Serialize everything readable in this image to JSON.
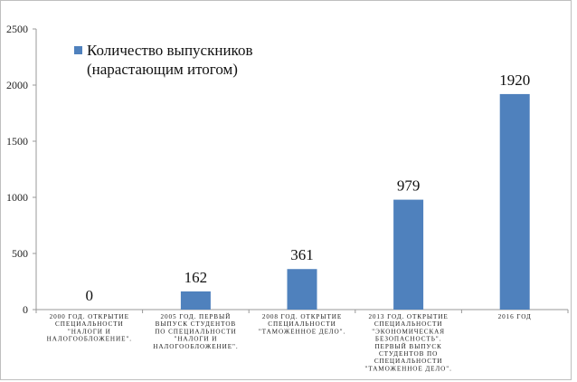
{
  "chart_data": {
    "type": "bar",
    "categories": [
      "2000 ГОД. ОТКРЫТИЕ СПЕЦИАЛЬНОСТИ \"НАЛОГИ И НАЛОГООБЛОЖЕНИЕ\".",
      "2005 ГОД. ПЕРВЫЙ ВЫПУСК СТУДЕНТОВ ПО СПЕЦИАЛЬНОСТИ \"НАЛОГИ И НАЛОГООБЛОЖЕНИЕ\".",
      "2008 ГОД. ОТКРЫТИЕ СПЕЦИАЛЬНОСТИ \"ТАМОЖЕННОЕ ДЕЛО\".",
      "2013 ГОД. ОТКРЫТИЕ СПЕЦИАЛЬНОСТИ \"ЭКОНОМИЧЕСКАЯ БЕЗОПАСНОСТЬ\". ПЕРВЫЙ ВЫПУСК СТУДЕНТОВ ПО СПЕЦИАЛЬНОСТИ \"ТАМОЖЕННОЕ ДЕЛО\".",
      "2016 ГОД"
    ],
    "category_lines": [
      [
        "2000 ГОД. ОТКРЫТИЕ",
        "СПЕЦИАЛЬНОСТИ",
        "\"НАЛОГИ И",
        "НАЛОГООБЛОЖЕНИЕ\"."
      ],
      [
        "2005 ГОД. ПЕРВЫЙ",
        "ВЫПУСК СТУДЕНТОВ",
        "ПО СПЕЦИАЛЬНОСТИ",
        "\"НАЛОГИ И",
        "НАЛОГООБЛОЖЕНИЕ\"."
      ],
      [
        "2008 ГОД. ОТКРЫТИЕ",
        "СПЕЦИАЛЬНОСТИ",
        "\"ТАМОЖЕННОЕ ДЕЛО\"."
      ],
      [
        "2013 ГОД. ОТКРЫТИЕ",
        "СПЕЦИАЛЬНОСТИ",
        "\"ЭКОНОМИЧЕСКАЯ",
        "БЕЗОПАСНОСТЬ\".",
        "ПЕРВЫЙ ВЫПУСК",
        "СТУДЕНТОВ ПО",
        "СПЕЦИАЛЬНОСТИ",
        "\"ТАМОЖЕННОЕ ДЕЛО\"."
      ],
      [
        "2016 ГОД"
      ]
    ],
    "series": [
      {
        "name": "Количество выпускников (нарастающим итогом)",
        "values": [
          0,
          162,
          361,
          979,
          1920
        ]
      }
    ],
    "legend_lines": [
      "Количество выпускников",
      "(нарастающим итогом)"
    ],
    "data_labels": [
      "0",
      "162",
      "361",
      "979",
      "1920"
    ],
    "ylim": [
      0,
      2500
    ],
    "yticks": [
      0,
      500,
      1000,
      1500,
      2000,
      2500
    ],
    "grid": false,
    "legend_position": "top-left",
    "bar_color": "#4f81bd",
    "axis_color": "#999999",
    "border_color": "#bfbfbf"
  }
}
